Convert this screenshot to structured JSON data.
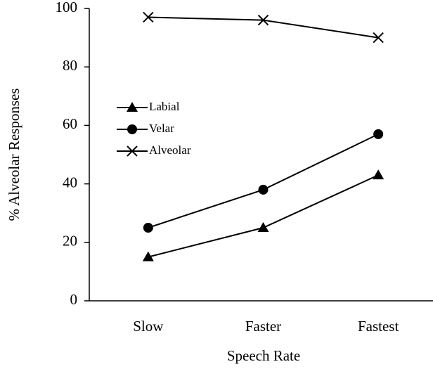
{
  "chart_data": {
    "type": "line",
    "x_label": "Speech Rate",
    "y_label": "% Alveolar Responses",
    "categories": [
      "Slow",
      "Faster",
      "Fastest"
    ],
    "series": [
      {
        "name": "Labial",
        "color": "#000000",
        "marker": "triangle",
        "values": [
          15,
          25,
          43
        ]
      },
      {
        "name": "Velar",
        "color": "#000000",
        "marker": "circle",
        "values": [
          25,
          38,
          57
        ]
      },
      {
        "name": "Alveolar",
        "color": "#000000",
        "marker": "x",
        "values": [
          97,
          96,
          90
        ]
      }
    ],
    "ylim": [
      0,
      100
    ],
    "yticks": [
      0,
      20,
      40,
      60,
      80,
      100
    ],
    "grid": false
  }
}
